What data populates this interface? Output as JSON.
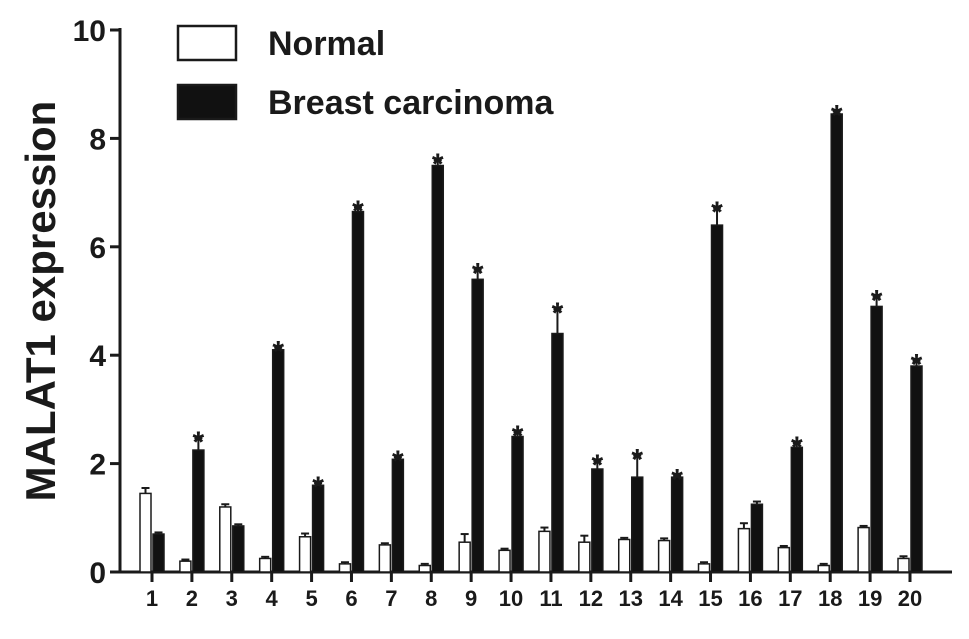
{
  "chart_data": {
    "type": "bar",
    "ylabel": "MALAT1 expression",
    "ylim": [
      0,
      10
    ],
    "y_ticks": [
      0,
      2,
      4,
      6,
      8,
      10
    ],
    "legend_position": "top-left",
    "grid": false,
    "categories": [
      "1",
      "2",
      "3",
      "4",
      "5",
      "6",
      "7",
      "8",
      "9",
      "10",
      "11",
      "12",
      "13",
      "14",
      "15",
      "16",
      "17",
      "18",
      "19",
      "20"
    ],
    "series": [
      {
        "name": "Normal",
        "color": "#ffffff",
        "values": [
          1.45,
          0.2,
          1.2,
          0.25,
          0.65,
          0.15,
          0.5,
          0.12,
          0.55,
          0.4,
          0.75,
          0.55,
          0.6,
          0.58,
          0.15,
          0.8,
          0.45,
          0.12,
          0.82,
          0.25
        ],
        "errors": [
          0.1,
          0.03,
          0.05,
          0.03,
          0.06,
          0.03,
          0.03,
          0.03,
          0.15,
          0.03,
          0.07,
          0.12,
          0.03,
          0.04,
          0.03,
          0.1,
          0.03,
          0.03,
          0.03,
          0.04
        ]
      },
      {
        "name": "Breast carcinoma",
        "color": "#111111",
        "values": [
          0.7,
          2.25,
          0.85,
          4.1,
          1.6,
          6.65,
          2.08,
          7.5,
          5.4,
          2.5,
          4.4,
          1.9,
          1.75,
          1.75,
          6.4,
          1.25,
          2.3,
          8.45,
          4.9,
          3.8
        ],
        "errors": [
          0.03,
          0.22,
          0.03,
          0.04,
          0.04,
          0.08,
          0.04,
          0.1,
          0.18,
          0.08,
          0.45,
          0.15,
          0.4,
          0.03,
          0.32,
          0.05,
          0.08,
          0.05,
          0.18,
          0.1
        ]
      }
    ],
    "significance_marker": "*",
    "significant": [
      false,
      true,
      false,
      true,
      true,
      true,
      true,
      true,
      true,
      true,
      true,
      true,
      true,
      true,
      true,
      false,
      true,
      true,
      true,
      true
    ]
  }
}
